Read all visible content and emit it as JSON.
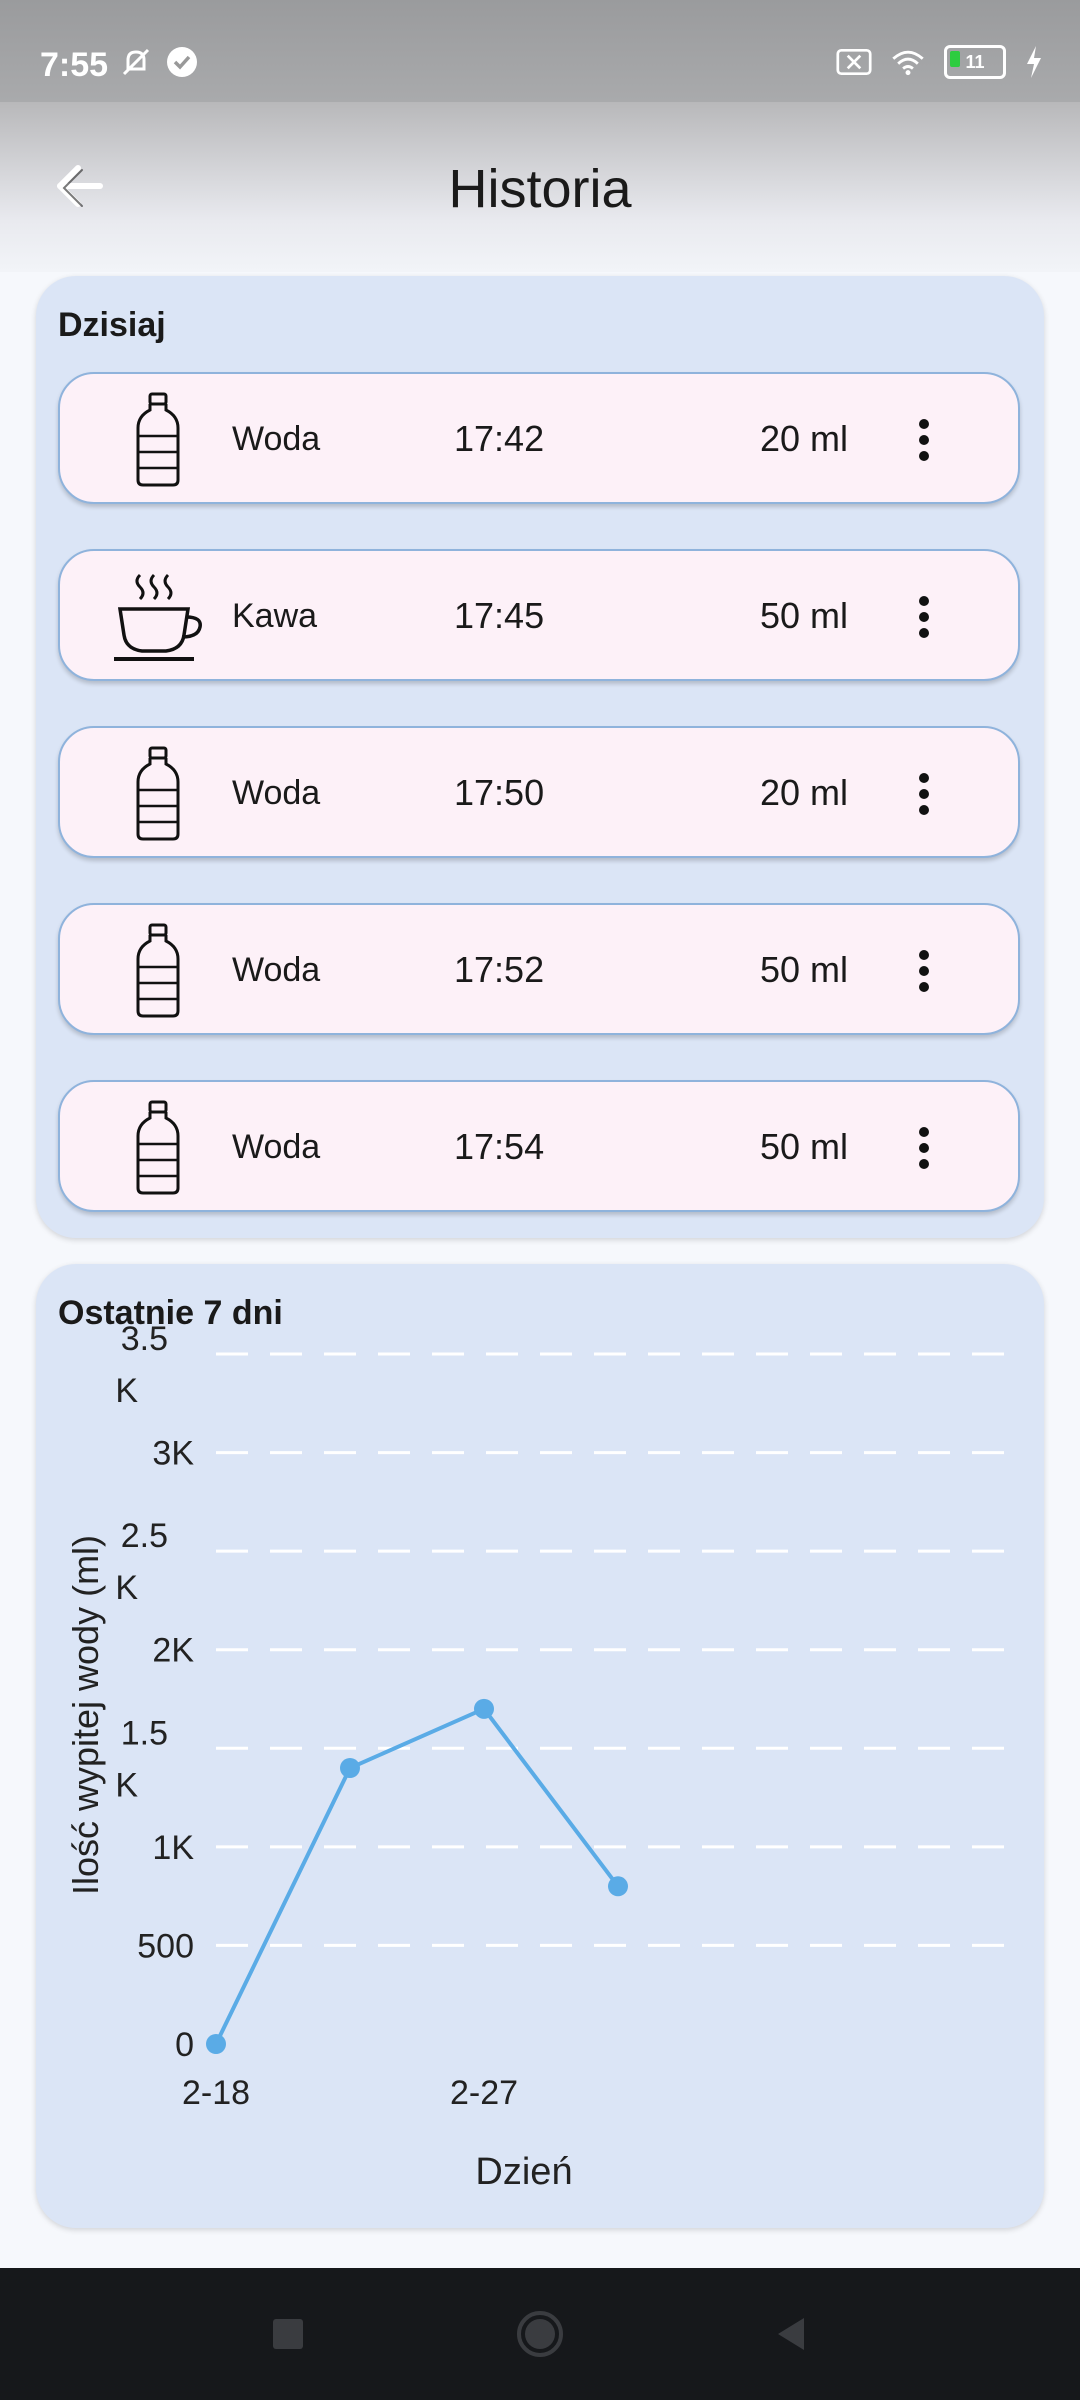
{
  "status_bar": {
    "time": "7:55",
    "battery_level": "11"
  },
  "header": {
    "title": "Historia"
  },
  "today": {
    "title": "Dzisiaj",
    "entries": [
      {
        "type": "Woda",
        "time": "17:42",
        "amount": "20 ml",
        "icon": "water-bottle-icon"
      },
      {
        "type": "Kawa",
        "time": "17:45",
        "amount": "50 ml",
        "icon": "coffee-cup-icon"
      },
      {
        "type": "Woda",
        "time": "17:50",
        "amount": "20 ml",
        "icon": "water-bottle-icon"
      },
      {
        "type": "Woda",
        "time": "17:52",
        "amount": "50 ml",
        "icon": "water-bottle-icon"
      },
      {
        "type": "Woda",
        "time": "17:54",
        "amount": "50 ml",
        "icon": "water-bottle-icon"
      }
    ]
  },
  "week": {
    "title": "Ostatnie 7 dni"
  },
  "chart_data": {
    "type": "line",
    "xlabel": "Dzień",
    "ylabel": "Ilość wypitej wody (ml)",
    "x_tick_labels": [
      "2-18",
      "2-27"
    ],
    "ylim": [
      0,
      3500
    ],
    "y_ticks": [
      0,
      500,
      1000,
      1500,
      2000,
      2500,
      3000,
      3500
    ],
    "y_tick_labels": [
      "0",
      "500",
      "1K",
      "1.5K",
      "2K",
      "2.5K",
      "3K",
      "3.5K"
    ],
    "grid": "horizontal dashed",
    "series": [
      {
        "values": [
          {
            "i": 0,
            "y": 0
          },
          {
            "i": 1,
            "y": 1400
          },
          {
            "i": 2,
            "y": 1700
          },
          {
            "i": 3,
            "y": 800
          }
        ]
      }
    ],
    "color": "#5aabe6"
  },
  "colors": {
    "card_background": "#dbe5f6",
    "entry_background": "#fdf1f8",
    "entry_border": "#8fb3dc",
    "line": "#5aabe6",
    "grid": "#ffffff"
  }
}
